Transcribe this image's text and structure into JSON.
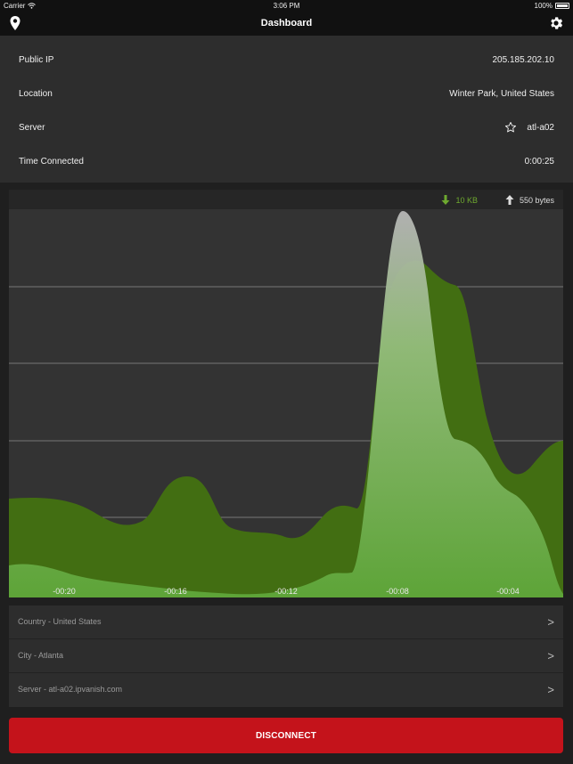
{
  "status_bar": {
    "carrier": "Carrier",
    "time": "3:06 PM",
    "battery": "100%"
  },
  "nav": {
    "title": "Dashboard",
    "left_icon": "location-pin-icon",
    "right_icon": "gear-icon"
  },
  "info": {
    "public_ip_label": "Public IP",
    "public_ip_value": "205.185.202.10",
    "location_label": "Location",
    "location_value": "Winter Park, United States",
    "server_label": "Server",
    "server_value": "atl-a02",
    "time_label": "Time Connected",
    "time_value": "0:00:25"
  },
  "chart_data": {
    "type": "area",
    "legend": {
      "download": "10 KB",
      "upload": "550 bytes"
    },
    "x_ticks": [
      "-00:20",
      "-00:16",
      "-00:12",
      "-00:08",
      "-00:04"
    ],
    "colors": {
      "download": "#426e12",
      "upload": "#6fb046",
      "background": "#333333",
      "grid": "#777777"
    },
    "grid": true
  },
  "list": {
    "country": "Country - United States",
    "city": "City - Atlanta",
    "server": "Server - atl-a02.ipvanish.com",
    "chevron": ">"
  },
  "disconnect_label": "DISCONNECT"
}
